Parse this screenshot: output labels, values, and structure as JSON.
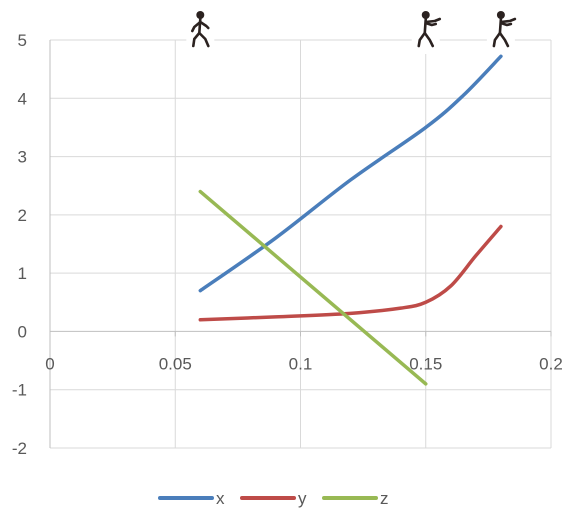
{
  "chart_data": {
    "type": "line",
    "title": "",
    "xlabel": "",
    "ylabel": "",
    "xlim": [
      0,
      0.2
    ],
    "ylim": [
      -2,
      5
    ],
    "x_ticks": [
      0,
      0.05,
      0.1,
      0.15,
      0.2
    ],
    "x_tick_labels": [
      "0",
      "0.05",
      "0.1",
      "0.15",
      "0.2"
    ],
    "y_ticks": [
      -2,
      -1,
      0,
      1,
      2,
      3,
      4,
      5
    ],
    "y_tick_labels": [
      "-2",
      "-1",
      "0",
      "1",
      "2",
      "3",
      "4",
      "5"
    ],
    "grid": true,
    "legend_position": "bottom",
    "series": [
      {
        "name": "x",
        "color": "#4a7ebb",
        "points": [
          [
            0.06,
            0.7
          ],
          [
            0.09,
            1.6
          ],
          [
            0.12,
            2.6
          ],
          [
            0.15,
            3.5
          ],
          [
            0.165,
            4.05
          ],
          [
            0.18,
            4.72
          ]
        ]
      },
      {
        "name": "y",
        "color": "#be4b48",
        "points": [
          [
            0.06,
            0.2
          ],
          [
            0.09,
            0.25
          ],
          [
            0.12,
            0.31
          ],
          [
            0.14,
            0.4
          ],
          [
            0.15,
            0.5
          ],
          [
            0.16,
            0.78
          ],
          [
            0.17,
            1.3
          ],
          [
            0.18,
            1.8
          ]
        ]
      },
      {
        "name": "z",
        "color": "#98b954",
        "points": [
          [
            0.06,
            2.4
          ],
          [
            0.15,
            -0.9
          ]
        ]
      }
    ],
    "markers": [
      {
        "icon": "stick-figure-walking-icon",
        "x": 0.06
      },
      {
        "icon": "stick-figure-pointing-icon",
        "x": 0.15
      },
      {
        "icon": "stick-figure-pointing-icon",
        "x": 0.18
      }
    ]
  }
}
